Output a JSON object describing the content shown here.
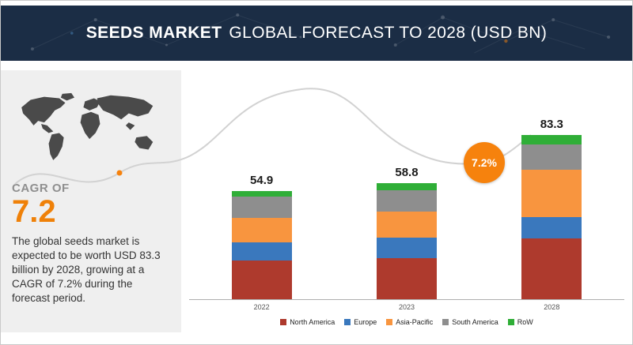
{
  "header": {
    "title_part1": "SEEDS MARKET",
    "title_part2": "GLOBAL FORECAST TO 2028 (USD BN)"
  },
  "sidebar": {
    "cagr_label": "CAGR OF",
    "cagr_value": "7.2",
    "description": "The global seeds market is expected to be worth USD 83.3 billion by 2028, growing at a CAGR of 7.2% during the forecast period."
  },
  "badge": {
    "text": "7.2%",
    "color": "#f6820d"
  },
  "colors": {
    "header_bg": "#1b2d45",
    "sidebar_bg": "#efefef",
    "accent_orange": "#ef8109",
    "axis": "#aeaeae",
    "map_fill": "#4a4a4a"
  },
  "chart_data": {
    "type": "bar",
    "stacked": true,
    "unit": "USD BN",
    "title": "Seeds Market Global Forecast to 2028 (USD BN)",
    "categories": [
      "2022",
      "2023",
      "2028"
    ],
    "totals": [
      54.9,
      58.8,
      83.3
    ],
    "series": [
      {
        "name": "North America",
        "color": "#ae3a2d",
        "values": [
          19.5,
          21.0,
          31.0
        ]
      },
      {
        "name": "Europe",
        "color": "#3a78bd",
        "values": [
          9.5,
          10.2,
          10.5
        ]
      },
      {
        "name": "Asia-Pacific",
        "color": "#f8953f",
        "values": [
          12.4,
          13.2,
          24.0
        ]
      },
      {
        "name": "South America",
        "color": "#8e8e8e",
        "values": [
          10.5,
          11.0,
          12.8
        ]
      },
      {
        "name": "RoW",
        "color": "#2fae37",
        "values": [
          3.0,
          3.4,
          5.0
        ]
      }
    ],
    "xlabel": "",
    "ylabel": "",
    "ylim": [
      0,
      90
    ],
    "grid": false,
    "legend_position": "bottom",
    "annotation": "7.2% CAGR badge between 2023 and 2028 bars"
  }
}
